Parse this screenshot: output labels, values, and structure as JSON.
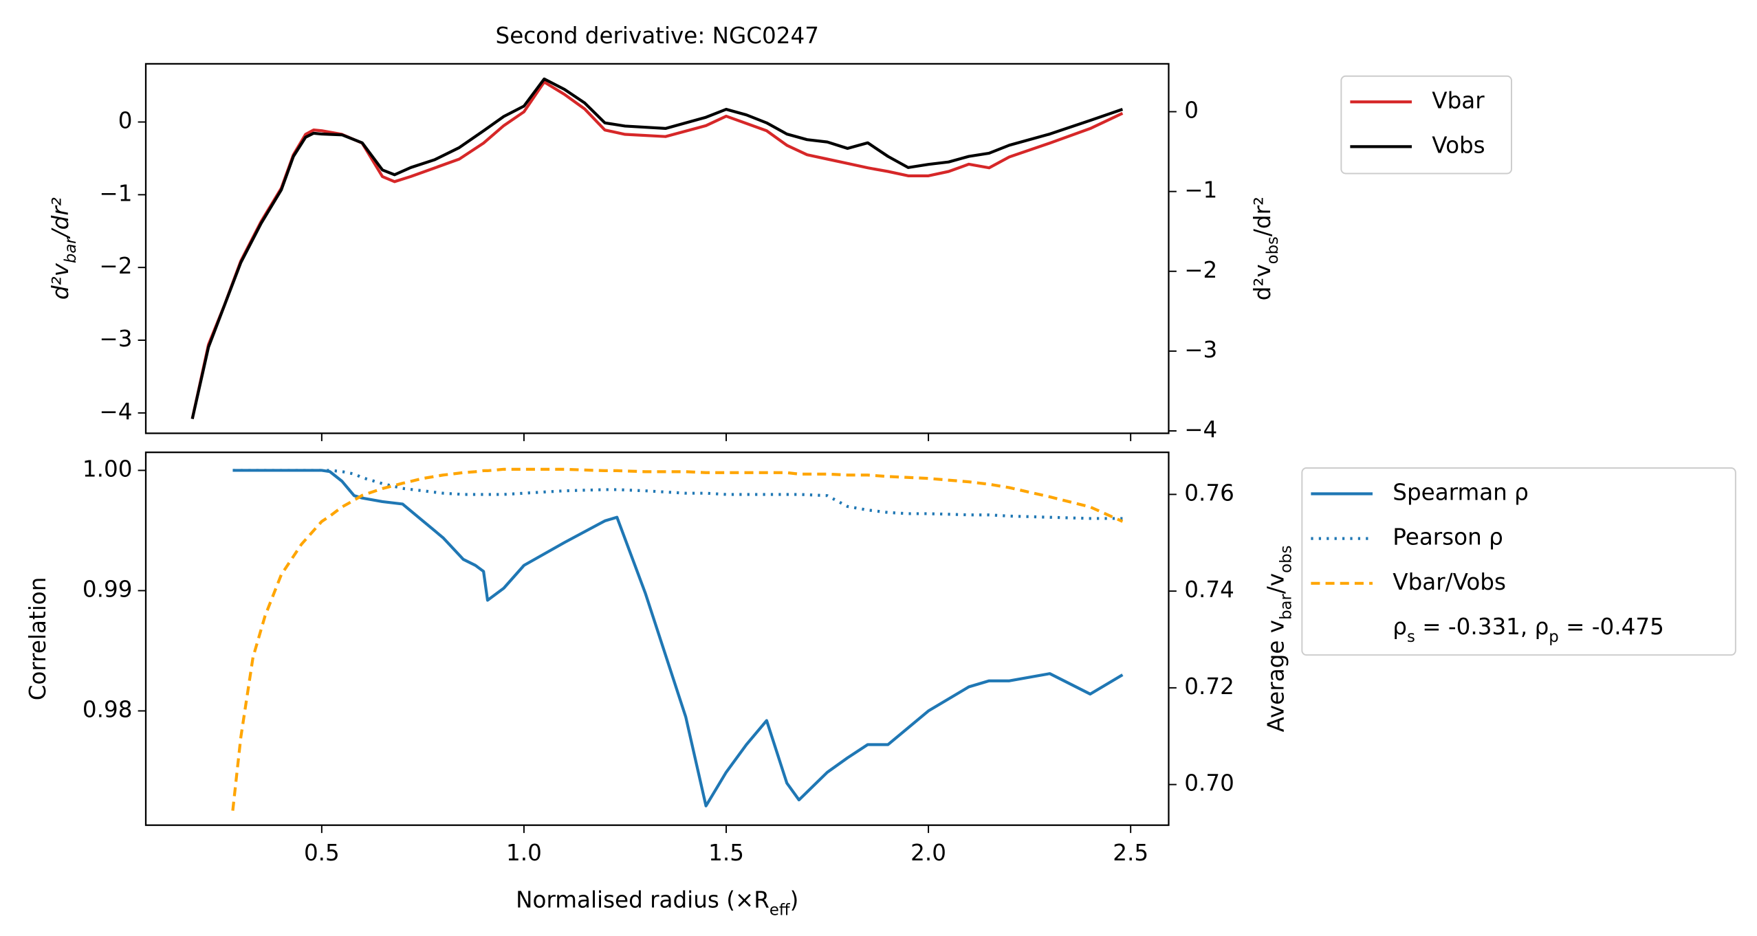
{
  "chart_data": [
    {
      "type": "line",
      "title": "Second derivative: NGC0247",
      "ylabel": [
        "d²v",
        "bar",
        "/dr²"
      ],
      "y2label": [
        "d²v",
        "obs",
        "/dr²"
      ],
      "xlim": [
        0.065,
        2.594
      ],
      "ylim": [
        -4.28,
        0.8
      ],
      "y2lim": [
        -4.03,
        0.6
      ],
      "yticks": [
        {
          "value": 0,
          "label": "0"
        },
        {
          "value": -1,
          "label": "−1"
        },
        {
          "value": -2,
          "label": "−2"
        },
        {
          "value": -3,
          "label": "−3"
        },
        {
          "value": -4,
          "label": "−4"
        }
      ],
      "y2ticks": [
        {
          "value": 0,
          "label": "0"
        },
        {
          "value": -1,
          "label": "−1"
        },
        {
          "value": -2,
          "label": "−2"
        },
        {
          "value": -3,
          "label": "−3"
        },
        {
          "value": -4,
          "label": "−4"
        }
      ],
      "ycolor": "#d62728",
      "y2color": "#000000",
      "legend": "outside right",
      "x": [
        0.18,
        0.22,
        0.26,
        0.3,
        0.35,
        0.4,
        0.43,
        0.46,
        0.48,
        0.5,
        0.55,
        0.6,
        0.65,
        0.68,
        0.72,
        0.78,
        0.84,
        0.9,
        0.95,
        1.0,
        1.05,
        1.1,
        1.15,
        1.2,
        1.25,
        1.35,
        1.45,
        1.5,
        1.55,
        1.6,
        1.65,
        1.7,
        1.75,
        1.8,
        1.85,
        1.9,
        1.95,
        2.0,
        2.05,
        2.1,
        2.15,
        2.2,
        2.3,
        2.4,
        2.48
      ],
      "series": [
        {
          "name": "Vbar",
          "color": "#d62728",
          "style": "solid",
          "axis": "y",
          "values": [
            -4.08,
            -3.06,
            -2.51,
            -1.91,
            -1.37,
            -0.91,
            -0.45,
            -0.17,
            -0.11,
            -0.12,
            -0.17,
            -0.29,
            -0.75,
            -0.82,
            -0.75,
            -0.63,
            -0.51,
            -0.29,
            -0.05,
            0.14,
            0.55,
            0.38,
            0.18,
            -0.11,
            -0.17,
            -0.2,
            -0.05,
            0.08,
            -0.02,
            -0.12,
            -0.32,
            -0.45,
            -0.51,
            -0.57,
            -0.63,
            -0.68,
            -0.74,
            -0.74,
            -0.68,
            -0.58,
            -0.63,
            -0.48,
            -0.29,
            -0.09,
            0.12
          ]
        },
        {
          "name": "Vobs",
          "color": "#000000",
          "style": "solid",
          "axis": "y2",
          "values": [
            -3.85,
            -2.95,
            -2.42,
            -1.89,
            -1.4,
            -0.98,
            -0.56,
            -0.32,
            -0.27,
            -0.28,
            -0.29,
            -0.39,
            -0.73,
            -0.79,
            -0.7,
            -0.6,
            -0.45,
            -0.24,
            -0.06,
            0.07,
            0.41,
            0.28,
            0.11,
            -0.14,
            -0.18,
            -0.21,
            -0.07,
            0.03,
            -0.04,
            -0.14,
            -0.28,
            -0.35,
            -0.38,
            -0.46,
            -0.39,
            -0.56,
            -0.7,
            -0.66,
            -0.63,
            -0.56,
            -0.52,
            -0.42,
            -0.28,
            -0.11,
            0.03
          ]
        }
      ]
    },
    {
      "type": "line",
      "xlabel": [
        "Normalised radius (×R",
        "eff",
        ")"
      ],
      "ylabel": [
        "Correlation"
      ],
      "y2label": [
        "Average v",
        "bar",
        "/v",
        "obs"
      ],
      "xlim": [
        0.065,
        2.594
      ],
      "ylim": [
        0.9705,
        1.0015
      ],
      "y2lim": [
        0.6916,
        0.7687
      ],
      "xticks": [
        0.5,
        {
          "value": 1,
          "label": "1.0"
        },
        1.5,
        {
          "value": 2,
          "label": "2.0"
        },
        2.5
      ],
      "yticks": [
        {
          "value": 1,
          "label": "1.00"
        },
        0.99,
        0.98
      ],
      "y2ticks": [
        {
          "value": 0.7,
          "label": "0.70"
        },
        0.72,
        0.74,
        0.76
      ],
      "ycolor": "#1f77b4",
      "y2color": "#ffa500",
      "legend": "outside right",
      "annotation": [
        "ρ",
        "s",
        " = -0.331, ρ",
        "p",
        " = -0.475"
      ],
      "x": [
        0.28,
        0.3,
        0.33,
        0.36,
        0.4,
        0.45,
        0.5,
        0.52,
        0.55,
        0.58,
        0.6,
        0.65,
        0.7,
        0.75,
        0.8,
        0.85,
        0.88,
        0.9,
        0.91,
        0.95,
        1.0,
        1.1,
        1.2,
        1.23,
        1.3,
        1.4,
        1.45,
        1.5,
        1.55,
        1.6,
        1.65,
        1.68,
        1.75,
        1.8,
        1.85,
        1.9,
        1.95,
        2.0,
        2.1,
        2.15,
        2.2,
        2.3,
        2.4,
        2.48
      ],
      "series": [
        {
          "name": "Spearman ρ",
          "color": "#1f77b4",
          "style": "solid",
          "axis": "y",
          "values": [
            1,
            1,
            1,
            1,
            1,
            1,
            1,
            0.9999,
            0.9991,
            0.9979,
            0.9977,
            0.9974,
            0.9972,
            0.9958,
            0.9944,
            0.9926,
            0.9921,
            0.9916,
            0.9892,
            0.9902,
            0.9921,
            0.994,
            0.9958,
            0.9961,
            0.9898,
            0.9795,
            0.9721,
            0.9749,
            0.9772,
            0.9792,
            0.974,
            0.9726,
            0.9749,
            0.9761,
            0.9772,
            0.9772,
            0.9786,
            0.98,
            0.982,
            0.9825,
            0.9825,
            0.9831,
            0.9814,
            0.983
          ]
        },
        {
          "name": "Pearson ρ",
          "color": "#1f77b4",
          "style": "dotted",
          "axis": "y",
          "values": [
            1,
            1,
            1,
            1,
            1,
            1,
            1,
            1,
            0.9999,
            0.9997,
            0.9994,
            0.9989,
            0.9985,
            0.9983,
            0.9981,
            0.998,
            0.998,
            0.998,
            0.998,
            0.998,
            0.9981,
            0.9983,
            0.9984,
            0.9984,
            0.9983,
            0.9981,
            0.9981,
            0.998,
            0.998,
            0.998,
            0.998,
            0.998,
            0.9979,
            0.997,
            0.9967,
            0.9965,
            0.9964,
            0.9964,
            0.9963,
            0.9963,
            0.9962,
            0.9961,
            0.996,
            0.996
          ]
        },
        {
          "name": "Vbar/Vobs",
          "color": "#ffa500",
          "style": "dashed",
          "axis": "y2",
          "values": [
            0.6946,
            0.7098,
            0.7263,
            0.7349,
            0.7434,
            0.7497,
            0.7544,
            0.7555,
            0.7574,
            0.7588,
            0.7598,
            0.7612,
            0.7623,
            0.7633,
            0.764,
            0.7645,
            0.7647,
            0.7649,
            0.7649,
            0.7652,
            0.7652,
            0.7652,
            0.7649,
            0.7649,
            0.7647,
            0.7647,
            0.7645,
            0.7645,
            0.7645,
            0.7645,
            0.7645,
            0.7642,
            0.7642,
            0.764,
            0.764,
            0.7637,
            0.7635,
            0.7633,
            0.7626,
            0.7621,
            0.7614,
            0.7595,
            0.7574,
            0.7544
          ]
        }
      ]
    }
  ]
}
